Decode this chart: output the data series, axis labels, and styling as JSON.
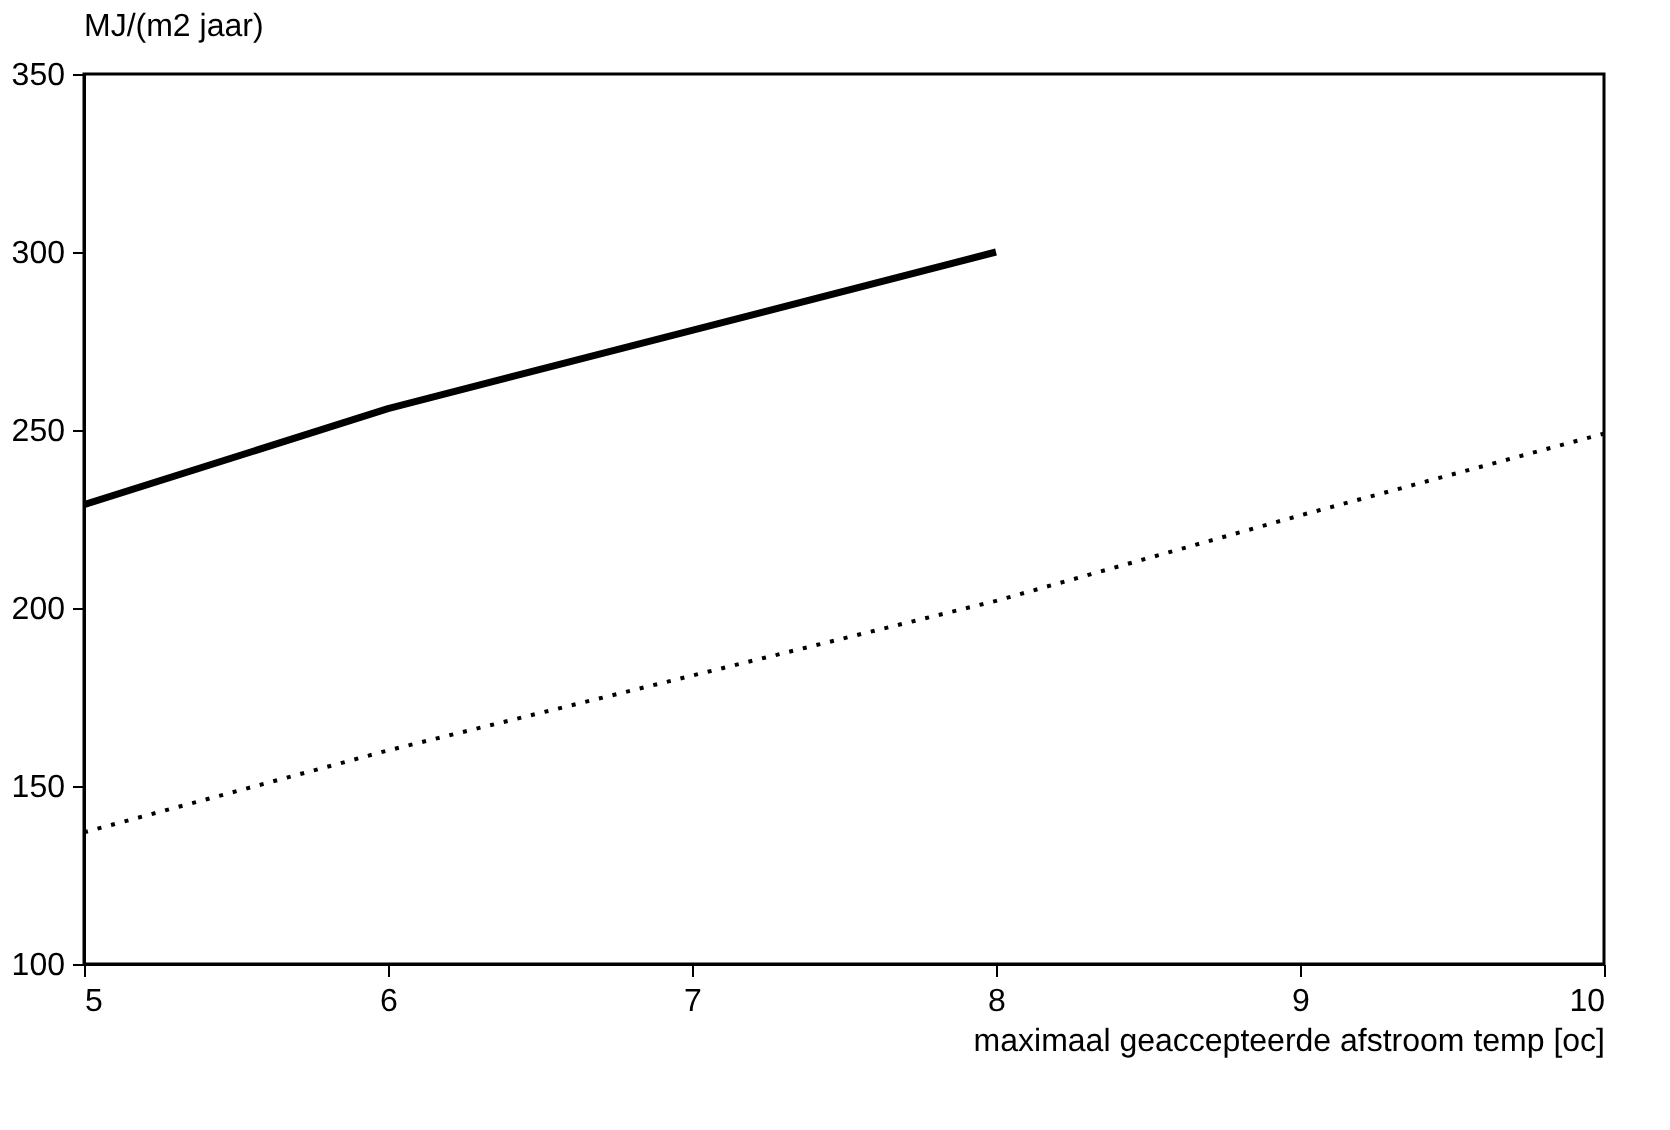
{
  "chart_data": {
    "type": "line",
    "title": "MJ/(m2 jaar)",
    "xlabel": "maximaal geaccepteerde afstroom temp [oc]",
    "xlim": [
      5,
      10
    ],
    "xticks": [
      5,
      6,
      7,
      8,
      9,
      10
    ],
    "ylim": [
      100,
      350
    ],
    "yticks": [
      100,
      150,
      200,
      250,
      300,
      350
    ],
    "grid": false,
    "series": [
      {
        "x": [
          5,
          6,
          7,
          8
        ],
        "values": [
          229,
          256,
          278,
          300
        ],
        "color": "#000000",
        "line_style": "solid"
      },
      {
        "x": [
          5,
          6,
          7,
          8,
          9,
          10
        ],
        "values": [
          137,
          160,
          181,
          202,
          226,
          249
        ],
        "color": "#000000",
        "line_style": "dotted"
      }
    ]
  }
}
